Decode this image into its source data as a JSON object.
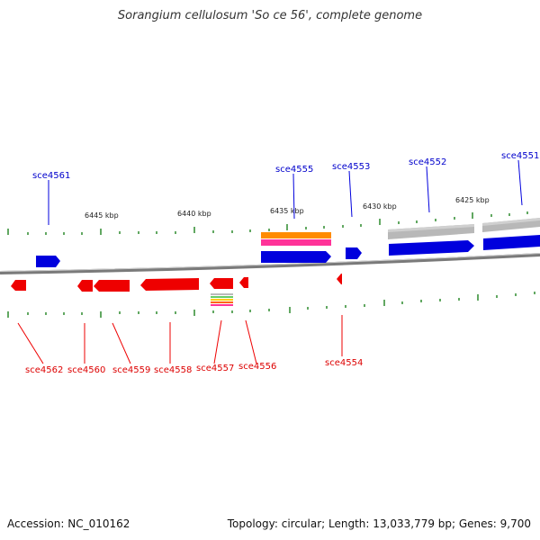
{
  "title": "Sorangium cellulosum 'So ce 56', complete genome",
  "footer": {
    "accession": "Accession: NC_010162",
    "summary": "Topology: circular; Length: 13,033,779 bp; Genes: 9,700"
  },
  "colors": {
    "forward": "#0000dd",
    "reverse": "#ee0000",
    "backbone": "#808080",
    "tick": "#2e8b2e",
    "ruler_text": "#222222"
  },
  "ruler_labels": [
    "6445 kbp",
    "6440 kbp",
    "6435 kbp",
    "6430 kbp",
    "6425 kbp"
  ],
  "forward_labels": [
    "sce4561",
    "sce4555",
    "sce4553",
    "sce4552",
    "sce4551"
  ],
  "reverse_labels": [
    "sce4562",
    "sce4560",
    "sce4559",
    "sce4558",
    "sce4557",
    "sce4556",
    "sce4554"
  ]
}
